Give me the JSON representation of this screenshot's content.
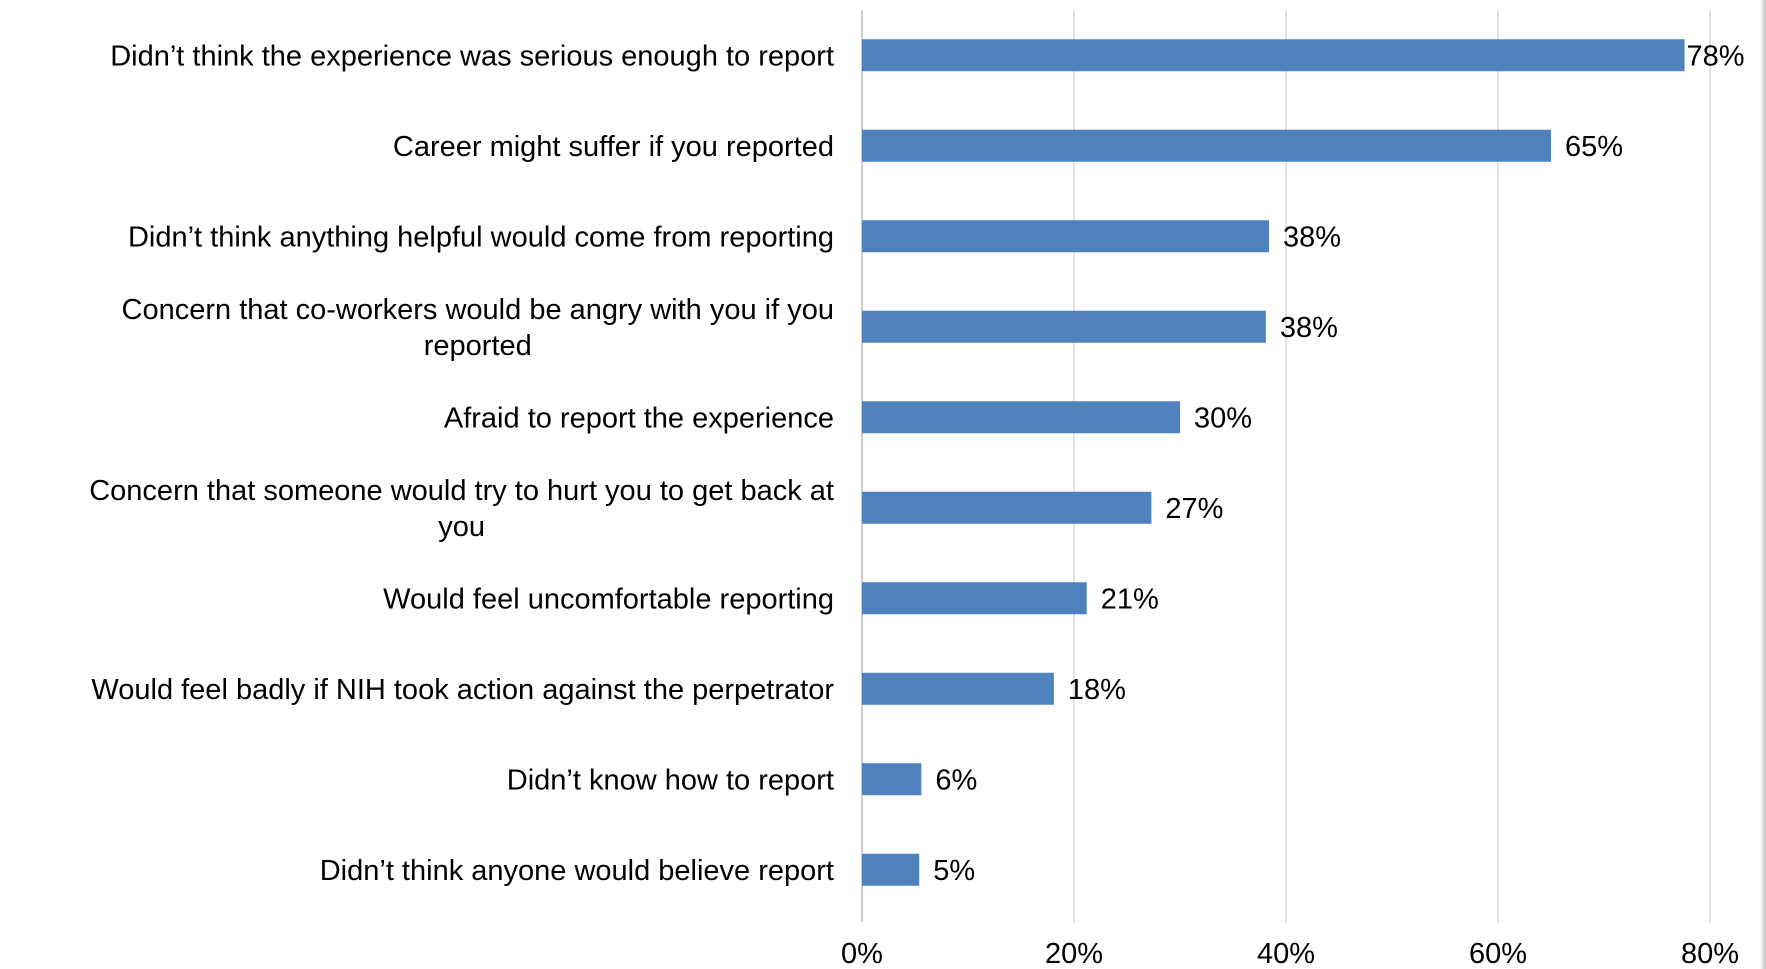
{
  "chart_data": {
    "type": "bar",
    "orientation": "horizontal",
    "title": "",
    "xlabel": "",
    "ylabel": "",
    "xlim": [
      0,
      80
    ],
    "x_ticks": [
      "0%",
      "20%",
      "40%",
      "60%",
      "80%"
    ],
    "grid": true,
    "bar_color": "#4f81bd",
    "categories": [
      [
        "Didn’t think the experience was serious enough to report"
      ],
      [
        "Career might suffer if you reported"
      ],
      [
        "Didn’t think anything helpful would come from reporting"
      ],
      [
        "Concern that co-workers would be angry with you if you",
        "reported"
      ],
      [
        "Afraid to report the experience"
      ],
      [
        "Concern that someone would try to hurt you to get back at",
        "you"
      ],
      [
        "Would feel uncomfortable reporting"
      ],
      [
        "Would feel badly if NIH took action against the perpetrator"
      ],
      [
        "Didn’t know how to report"
      ],
      [
        "Didn’t think anyone would believe report"
      ]
    ],
    "values": [
      77.6,
      65,
      38.4,
      38.1,
      30,
      27.3,
      21.2,
      18.1,
      5.6,
      5.4
    ],
    "value_labels": [
      "78%",
      "65%",
      "38%",
      "38%",
      "30%",
      "27%",
      "21%",
      "18%",
      "6%",
      "5%"
    ]
  }
}
